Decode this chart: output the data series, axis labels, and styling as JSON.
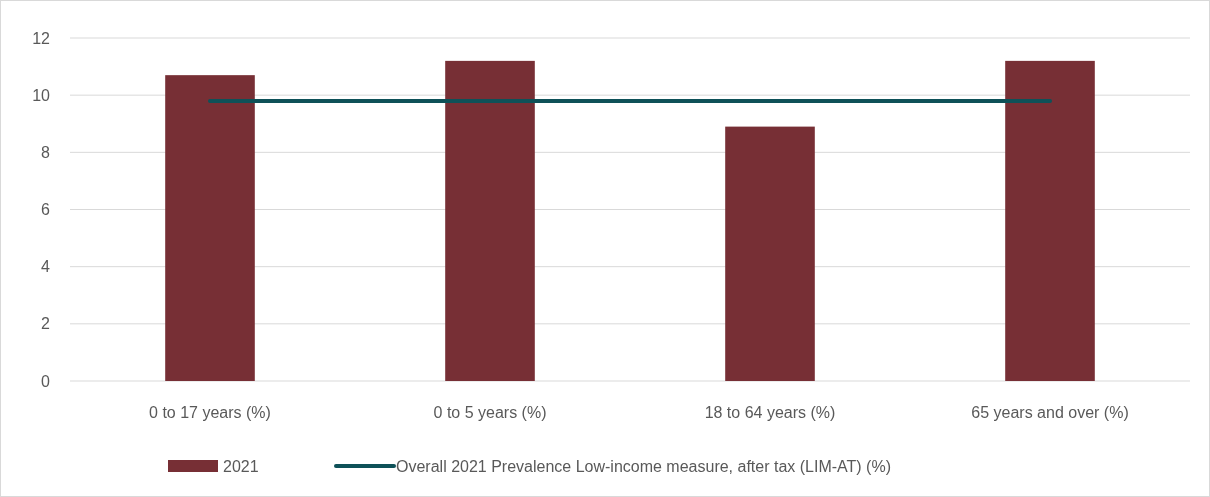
{
  "chart_data": {
    "type": "bar",
    "categories": [
      "0 to 17 years (%)",
      "0 to 5 years (%)",
      "18 to 64 years (%)",
      "65 years and over (%)"
    ],
    "series": [
      {
        "name": "2021",
        "color": "#772f35",
        "values": [
          10.7,
          11.2,
          8.9,
          11.2
        ]
      },
      {
        "name": "Overall 2021 Prevalence Low-income measure, after tax (LIM-AT) (%)",
        "type": "line",
        "color": "#0e5158",
        "values": [
          9.8,
          9.8,
          9.8,
          9.8
        ]
      }
    ],
    "ylim": [
      0,
      12
    ],
    "yticks": [
      0,
      2,
      4,
      6,
      8,
      10,
      12
    ],
    "grid": "y",
    "legend": "bottom"
  }
}
